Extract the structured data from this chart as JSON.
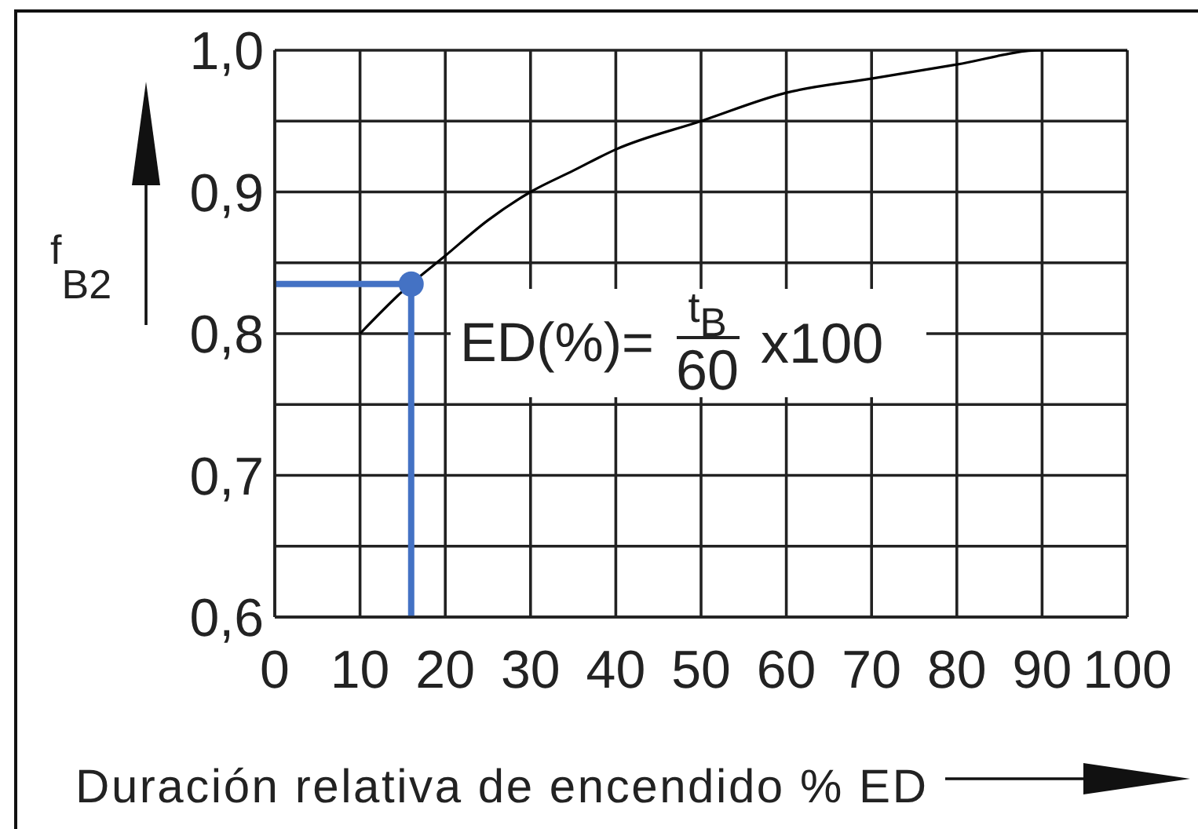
{
  "chart_data": {
    "type": "line",
    "xlabel": "Duración relativa de encendido % ED",
    "ylabel": "f$_{B2}$",
    "annotations": [
      "ED(%)= t$_{B}$ 60 x100"
    ],
    "xlim": [
      0,
      100
    ],
    "xticks": [
      0,
      10,
      20,
      30,
      40,
      50,
      60,
      70,
      80,
      90,
      100
    ],
    "ylim": [
      0.6,
      1.0
    ],
    "yticks": [
      {
        "value": 0.6,
        "label": "0,6"
      },
      {
        "value": 0.65,
        "label": null
      },
      {
        "value": 0.7,
        "label": "0,7"
      },
      {
        "value": 0.75,
        "label": null
      },
      {
        "value": 0.8,
        "label": "0,8"
      },
      {
        "value": 0.85,
        "label": null
      },
      {
        "value": 0.9,
        "label": "0,9"
      },
      {
        "value": 0.95,
        "label": null
      },
      {
        "value": 1.0,
        "label": "1,0"
      }
    ],
    "grid": true,
    "series": [
      {
        "color": "#000000",
        "x": [
          10,
          15,
          20,
          25,
          30,
          35,
          40,
          50,
          60,
          70,
          80,
          90,
          100
        ],
        "values": [
          0.8,
          0.83,
          0.855,
          0.88,
          0.9,
          0.915,
          0.93,
          0.95,
          0.97,
          0.98,
          0.99,
          1.0,
          1.0
        ]
      },
      {
        "color": "#4472c4",
        "x": [
          0,
          16,
          16
        ],
        "values": [
          0.835,
          0.835,
          0.6
        ]
      },
      {
        "type": "scatter",
        "color": "#4472c4",
        "marker": "circle",
        "x": [
          16
        ],
        "values": [
          0.835
        ]
      }
    ]
  }
}
